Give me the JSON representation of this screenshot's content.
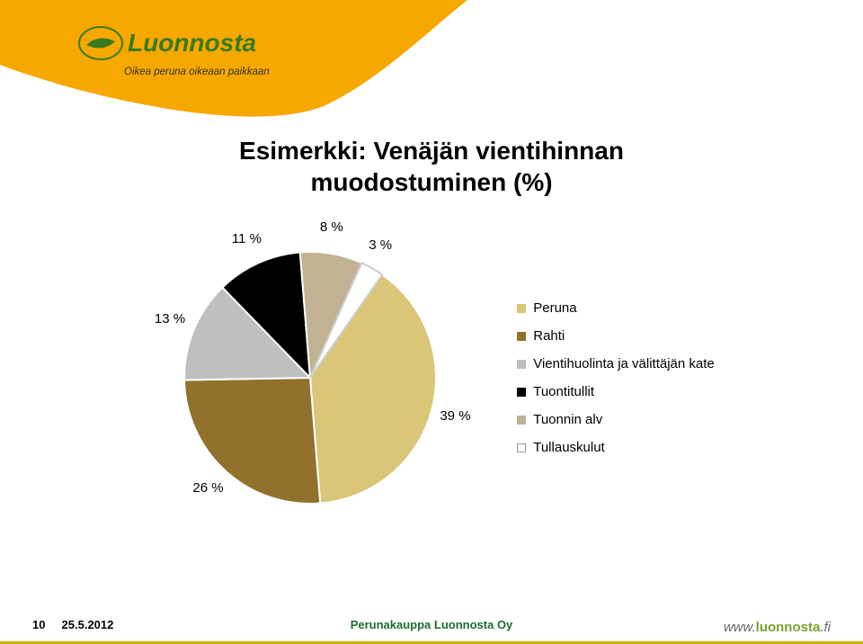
{
  "header": {
    "logo_text": "Luonnosta",
    "tagline": "Oikea peruna oikeaan paikkaan",
    "swoosh_color": "#f6a800",
    "logo_oval_fill": "#f6a800",
    "logo_text_color": "#3a7a1f",
    "tagline_color": "#333333"
  },
  "title": {
    "line1": "Esimerkki: Venäjän vientihinnan",
    "line2": "muodostuminen (%)",
    "fontsize": 28,
    "color": "#000000"
  },
  "chart": {
    "type": "pie",
    "background_color": "#ffffff",
    "radius": 140,
    "start_angle_deg": -55,
    "clockwise": true,
    "stroke": "#ffffff",
    "stroke_width": 2,
    "label_fontsize": 15,
    "label_color": "#000000",
    "slices": [
      {
        "label": "Peruna",
        "value": 39,
        "color": "#d9c678",
        "display": "39 %"
      },
      {
        "label": "Rahti",
        "value": 26,
        "color": "#91712c",
        "display": "26 %"
      },
      {
        "label": "Vientihuolinta ja välittäjän kate",
        "value": 13,
        "color": "#bfbfbf",
        "display": "13 %"
      },
      {
        "label": "Tuontitullit",
        "value": 11,
        "color": "#000000",
        "display": "11 %"
      },
      {
        "label": "Tuonnin alv",
        "value": 8,
        "color": "#c0b292",
        "display": "8 %"
      },
      {
        "label": "Tullauskulut",
        "value": 3,
        "color": "#ffffff",
        "display": "3 %"
      }
    ],
    "legend": {
      "position": "right",
      "swatch_size": 10,
      "gap": 14,
      "marker_colors": [
        "#d9c678",
        "#91712c",
        "#bfbfbf",
        "#000000",
        "#c0b292",
        "#ffffff"
      ],
      "marker_border": "#999999"
    }
  },
  "footer": {
    "page_number": "10",
    "date": "25.5.2012",
    "center": "Perunakauppa Luonnosta Oy",
    "url_prefix": "www.",
    "url_accent": "luonnosta",
    "url_suffix": ".fi",
    "center_color": "#1e6a2f",
    "bar_color": "#c8b200"
  }
}
